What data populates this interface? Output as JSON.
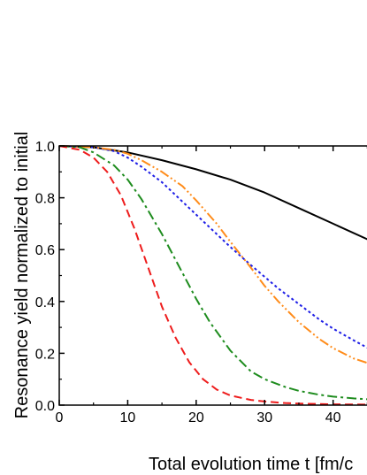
{
  "chart_data": {
    "type": "line",
    "title": "",
    "xlabel": "Total evolution time t [fm/c",
    "ylabel": "Resonance yield normalized to initial",
    "xlim": [
      0,
      46.5
    ],
    "ylim": [
      0,
      1.0
    ],
    "x_ticks": [
      0,
      10,
      20,
      30,
      40
    ],
    "x_tick_labels": [
      "0",
      "10",
      "20",
      "30",
      "40"
    ],
    "y_ticks": [
      0.0,
      0.2,
      0.4,
      0.6,
      0.8,
      1.0
    ],
    "y_tick_labels": [
      "0.0",
      "0.2",
      "0.4",
      "0.6",
      "0.8",
      "1.0"
    ],
    "grid": false,
    "series": [
      {
        "color": "#000000",
        "dash": "solid",
        "x": [
          0,
          5,
          10,
          15,
          20,
          25,
          30,
          35,
          40,
          45,
          46.5
        ],
        "y": [
          1.0,
          0.995,
          0.975,
          0.945,
          0.91,
          0.87,
          0.82,
          0.76,
          0.7,
          0.64,
          0.625
        ]
      },
      {
        "color": "#1f1fe6",
        "dash": "dotted",
        "x": [
          0,
          5,
          8,
          10,
          12,
          15,
          18,
          20,
          23,
          25,
          28,
          30,
          32,
          35,
          38,
          40,
          43,
          46.5
        ],
        "y": [
          1.0,
          0.995,
          0.98,
          0.955,
          0.92,
          0.86,
          0.785,
          0.735,
          0.66,
          0.61,
          0.54,
          0.495,
          0.45,
          0.39,
          0.33,
          0.295,
          0.25,
          0.2
        ]
      },
      {
        "color": "#ff8c1a",
        "dash": "dashdotdot",
        "x": [
          0,
          5,
          8,
          10,
          12,
          15,
          18,
          20,
          23,
          25,
          28,
          30,
          32,
          35,
          38,
          40,
          43,
          46.5
        ],
        "y": [
          1.0,
          0.995,
          0.985,
          0.97,
          0.945,
          0.9,
          0.845,
          0.79,
          0.7,
          0.63,
          0.53,
          0.46,
          0.4,
          0.32,
          0.255,
          0.22,
          0.18,
          0.15
        ]
      },
      {
        "color": "#1e8c1e",
        "dash": "dashdot",
        "x": [
          0,
          3,
          5,
          8,
          10,
          12,
          15,
          18,
          20,
          22,
          25,
          28,
          30,
          33,
          35,
          38,
          40,
          43,
          46.5
        ],
        "y": [
          1.0,
          0.995,
          0.975,
          0.925,
          0.87,
          0.795,
          0.66,
          0.51,
          0.41,
          0.32,
          0.21,
          0.13,
          0.1,
          0.07,
          0.055,
          0.04,
          0.033,
          0.026,
          0.02
        ]
      },
      {
        "color": "#ee1c1c",
        "dash": "dashed",
        "x": [
          0,
          3,
          5,
          7,
          9,
          11,
          13,
          15,
          17,
          19,
          21,
          23,
          25,
          28,
          30,
          33,
          35,
          40,
          46.5
        ],
        "y": [
          1.0,
          0.985,
          0.955,
          0.9,
          0.81,
          0.68,
          0.53,
          0.38,
          0.26,
          0.165,
          0.1,
          0.06,
          0.037,
          0.02,
          0.014,
          0.008,
          0.006,
          0.003,
          0.002
        ]
      }
    ]
  }
}
